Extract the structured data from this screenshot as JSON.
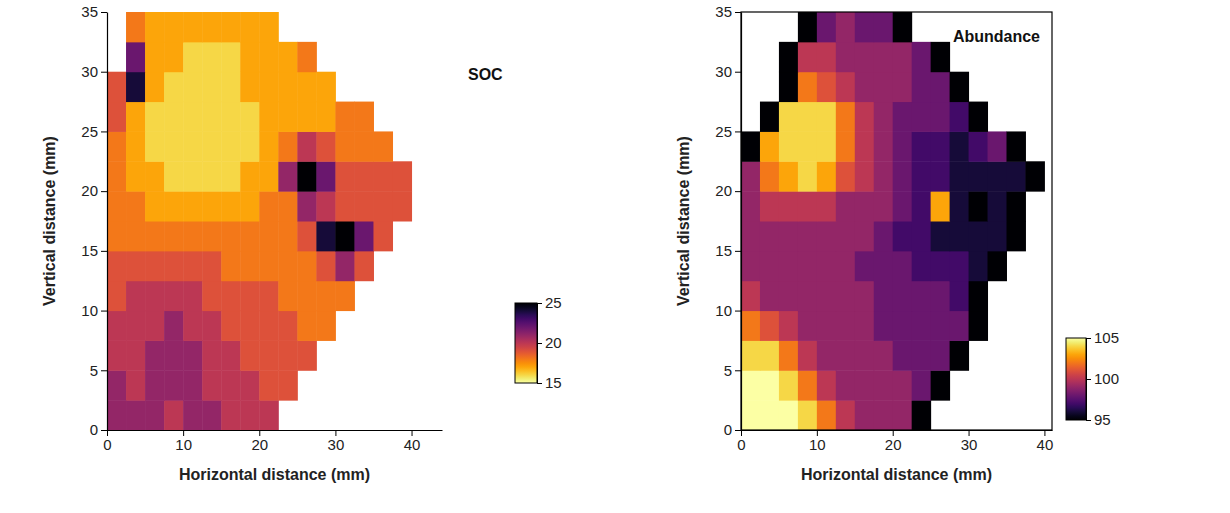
{
  "chart_data": [
    {
      "type": "heatmap",
      "title": "SOC",
      "x_label": "Horizontal distance (mm)",
      "y_label": "Vertical distance (mm)",
      "xlim": [
        0,
        44
      ],
      "ylim": [
        0,
        35
      ],
      "xticks": [
        0,
        10,
        20,
        30,
        40
      ],
      "yticks": [
        0,
        5,
        10,
        15,
        20,
        25,
        30,
        35
      ],
      "x": [
        1.25,
        3.75,
        6.25,
        8.75,
        11.25,
        13.75,
        16.25,
        18.75,
        21.25,
        23.75,
        26.25,
        28.75,
        31.25,
        33.75,
        36.25,
        38.75,
        41.25
      ],
      "y": [
        1.25,
        3.75,
        6.25,
        8.75,
        11.25,
        13.75,
        16.25,
        18.75,
        21.25,
        23.75,
        26.25,
        28.75,
        31.25,
        33.75
      ],
      "z": [
        [
          21,
          21,
          21,
          20,
          21,
          21,
          20,
          20,
          20,
          null,
          null,
          null,
          null,
          null,
          null,
          null,
          null
        ],
        [
          21,
          20,
          21,
          21,
          21,
          20,
          20,
          20,
          19,
          19,
          null,
          null,
          null,
          null,
          null,
          null,
          null
        ],
        [
          20,
          20,
          21,
          21,
          21,
          20,
          20,
          19,
          19,
          19,
          19,
          null,
          null,
          null,
          null,
          null,
          null
        ],
        [
          20,
          20,
          20,
          21,
          20,
          20,
          19,
          19,
          19,
          19,
          18,
          18,
          null,
          null,
          null,
          null,
          null
        ],
        [
          19,
          20,
          20,
          20,
          20,
          19,
          19,
          19,
          19,
          18,
          18,
          18,
          18,
          null,
          null,
          null,
          null
        ],
        [
          19,
          19,
          19,
          19,
          19,
          19,
          18,
          18,
          18,
          18,
          18,
          19,
          21,
          19,
          null,
          null,
          null
        ],
        [
          18,
          18,
          18,
          18,
          18,
          18,
          18,
          18,
          18,
          18,
          19,
          24,
          25,
          22,
          19,
          null,
          null
        ],
        [
          18,
          18,
          17,
          17,
          17,
          17,
          17,
          17,
          18,
          18,
          21,
          20,
          19,
          19,
          19,
          19,
          null
        ],
        [
          18,
          17,
          17,
          16,
          16,
          16,
          16,
          17,
          17,
          21,
          25,
          22,
          19,
          19,
          19,
          19,
          null
        ],
        [
          18,
          17,
          16,
          16,
          16,
          16,
          16,
          16,
          17,
          18,
          20,
          19,
          18,
          18,
          18,
          null,
          null
        ],
        [
          19,
          17,
          16,
          16,
          16,
          16,
          16,
          16,
          17,
          17,
          17,
          17,
          18,
          18,
          null,
          null,
          null
        ],
        [
          19,
          24,
          17,
          16,
          16,
          16,
          16,
          17,
          17,
          17,
          17,
          17,
          null,
          null,
          null,
          null,
          null
        ],
        [
          null,
          22,
          17,
          17,
          16,
          16,
          16,
          17,
          17,
          17,
          18,
          null,
          null,
          null,
          null,
          null,
          null
        ],
        [
          null,
          18,
          17,
          17,
          17,
          17,
          17,
          17,
          17,
          null,
          null,
          null,
          null,
          null,
          null,
          null,
          null
        ]
      ],
      "colorbar": {
        "range": [
          25,
          15
        ],
        "ticks": [
          15,
          20,
          25
        ]
      }
    },
    {
      "type": "heatmap",
      "title": "Abundance",
      "x_label": "Horizontal distance (mm)",
      "y_label": "Vertical distance (mm)",
      "xlim": [
        0,
        41
      ],
      "ylim": [
        0,
        35
      ],
      "xticks": [
        0,
        10,
        20,
        30,
        40
      ],
      "yticks": [
        0,
        5,
        10,
        15,
        20,
        25,
        30,
        35
      ],
      "x": [
        1.25,
        3.75,
        6.25,
        8.75,
        11.25,
        13.75,
        16.25,
        18.75,
        21.25,
        23.75,
        26.25,
        28.75,
        31.25,
        33.75,
        36.25,
        38.75,
        41.25
      ],
      "y": [
        1.25,
        3.75,
        6.25,
        8.75,
        11.25,
        13.75,
        16.25,
        18.75,
        21.25,
        23.75,
        26.25,
        28.75,
        31.25,
        33.75
      ],
      "z": [
        [
          105,
          105,
          105,
          104,
          102,
          100,
          99,
          99,
          99,
          94,
          null,
          null,
          null,
          null,
          null,
          null,
          null
        ],
        [
          105,
          105,
          104,
          102,
          100,
          99,
          99,
          99,
          99,
          98,
          94,
          null,
          null,
          null,
          null,
          null,
          null
        ],
        [
          104,
          104,
          102,
          100,
          99,
          99,
          99,
          99,
          98,
          98,
          98,
          94,
          null,
          null,
          null,
          null,
          null
        ],
        [
          102,
          101,
          100,
          99,
          99,
          99,
          99,
          98,
          98,
          98,
          98,
          98,
          94,
          null,
          null,
          null,
          null
        ],
        [
          100,
          99,
          99,
          99,
          99,
          99,
          99,
          98,
          98,
          98,
          98,
          97,
          94,
          null,
          null,
          null,
          null
        ],
        [
          99,
          99,
          99,
          99,
          99,
          99,
          98,
          98,
          98,
          97,
          97,
          97,
          96,
          94,
          null,
          null,
          null
        ],
        [
          99,
          99,
          99,
          99,
          99,
          99,
          99,
          98,
          97,
          97,
          96,
          96,
          96,
          96,
          94,
          null,
          null
        ],
        [
          99,
          100,
          100,
          100,
          100,
          99,
          99,
          99,
          98,
          97,
          103,
          96,
          95,
          96,
          94,
          null,
          null
        ],
        [
          99,
          102,
          103,
          104,
          103,
          101,
          100,
          99,
          98,
          97,
          97,
          96,
          96,
          96,
          96,
          94,
          null
        ],
        [
          94,
          103,
          104,
          104,
          104,
          102,
          100,
          99,
          98,
          97,
          97,
          96,
          97,
          98,
          94,
          null,
          null
        ],
        [
          null,
          94,
          104,
          104,
          104,
          102,
          100,
          99,
          98,
          98,
          98,
          97,
          94,
          null,
          null,
          null,
          null
        ],
        [
          null,
          null,
          94,
          102,
          101,
          100,
          99,
          99,
          99,
          98,
          98,
          94,
          null,
          null,
          null,
          null,
          null
        ],
        [
          null,
          null,
          94,
          100,
          100,
          99,
          99,
          99,
          99,
          98,
          94,
          null,
          null,
          null,
          null,
          null,
          null
        ],
        [
          null,
          null,
          null,
          94,
          98,
          99,
          98,
          98,
          94,
          null,
          null,
          null,
          null,
          null,
          null,
          null,
          null
        ]
      ],
      "colorbar": {
        "range": [
          95,
          105
        ],
        "ticks": [
          95,
          100,
          105
        ]
      }
    }
  ]
}
